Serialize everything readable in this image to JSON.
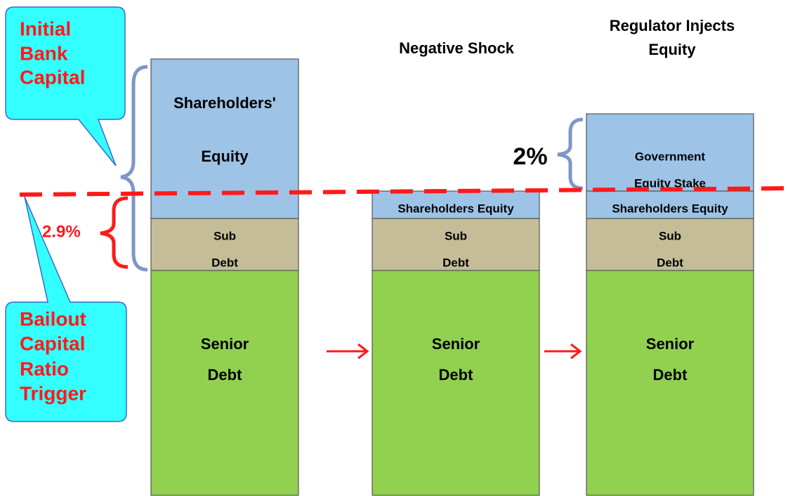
{
  "callouts": {
    "initial": [
      "Initial",
      "Bank",
      "Capital"
    ],
    "trigger": [
      "Bailout",
      "Capital",
      "Ratio",
      "Trigger"
    ]
  },
  "columns": [
    {
      "title": [],
      "blocks": {
        "equity": [
          "Shareholders'",
          "Equity"
        ],
        "sub": [
          "Sub",
          "Debt"
        ],
        "senior": [
          "Senior",
          "Debt"
        ]
      }
    },
    {
      "title": [
        "Negative Shock"
      ],
      "blocks": {
        "equity": [
          "Shareholders Equity"
        ],
        "sub": [
          "Sub",
          "Debt"
        ],
        "senior": [
          "Senior",
          "Debt"
        ]
      }
    },
    {
      "title": [
        "Regulator Injects",
        "Equity"
      ],
      "blocks": {
        "gov": [
          "Government",
          "Equity Stake"
        ],
        "equity": [
          "Shareholders Equity"
        ],
        "sub": [
          "Sub",
          "Debt"
        ],
        "senior": [
          "Senior",
          "Debt"
        ]
      }
    }
  ],
  "annotations": {
    "trigger_ratio": "2.9%",
    "injection": "2%"
  }
}
